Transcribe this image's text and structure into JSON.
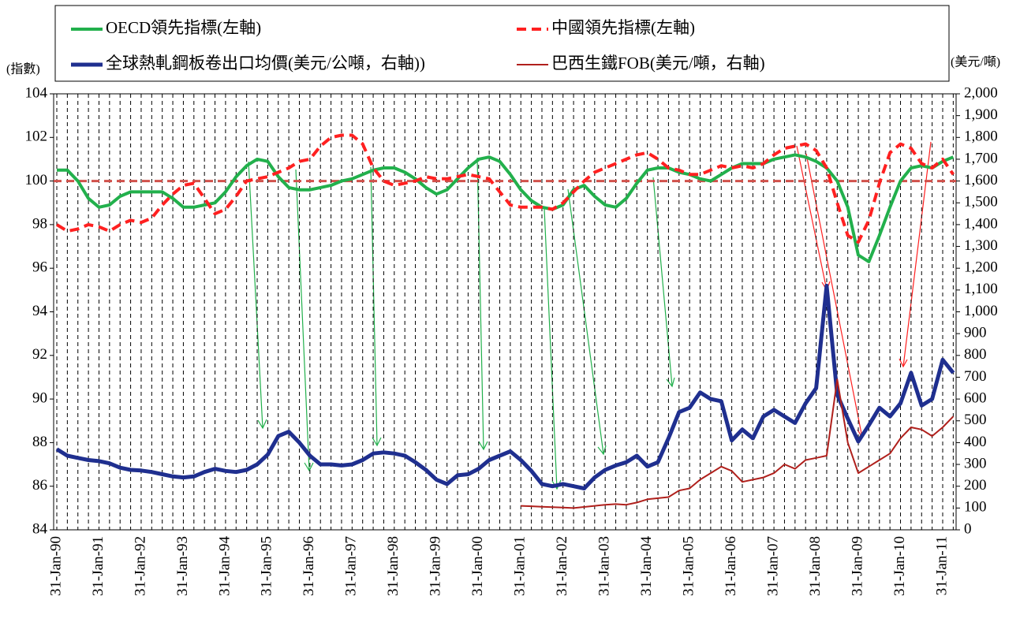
{
  "chart_data": {
    "type": "line",
    "yaxis_label": "(指數)",
    "y2axis_label": "(美元/噸)",
    "legend": "top",
    "grid": true,
    "hline": 100,
    "hline_color": "#d0504a",
    "categories": [
      "31-Jan-90",
      null,
      null,
      null,
      "31-Jan-91",
      null,
      null,
      null,
      "31-Jan-92",
      null,
      null,
      null,
      "31-Jan-93",
      null,
      null,
      null,
      "31-Jan-94",
      null,
      null,
      null,
      "31-Jan-95",
      null,
      null,
      null,
      "31-Jan-96",
      null,
      null,
      null,
      "31-Jan-97",
      null,
      null,
      null,
      "31-Jan-98",
      null,
      null,
      null,
      "31-Jan-99",
      null,
      null,
      null,
      "31-Jan-00",
      null,
      null,
      null,
      "31-Jan-01",
      null,
      null,
      null,
      "31-Jan-02",
      null,
      null,
      null,
      "31-Jan-03",
      null,
      null,
      null,
      "31-Jan-04",
      null,
      null,
      null,
      "31-Jan-05",
      null,
      null,
      null,
      "31-Jan-06",
      null,
      null,
      null,
      "31-Jan-07",
      null,
      null,
      null,
      "31-Jan-08",
      null,
      null,
      null,
      "31-Jan-09",
      null,
      null,
      null,
      "31-Jan-10",
      null,
      null,
      null,
      "31-Jan-11",
      null
    ],
    "ylim": [
      84,
      104
    ],
    "yticks": [
      84,
      86,
      88,
      90,
      92,
      94,
      96,
      98,
      100,
      102,
      104
    ],
    "y2lim": [
      0,
      2000
    ],
    "y2ticks": [
      0,
      100,
      200,
      300,
      400,
      500,
      600,
      700,
      800,
      900,
      {
        "value": 1000,
        "label": "1,000"
      },
      {
        "value": 1100,
        "label": "1,100"
      },
      {
        "value": 1200,
        "label": "1,200"
      },
      {
        "value": 1300,
        "label": "1,300"
      },
      {
        "value": 1400,
        "label": "1,400"
      },
      {
        "value": 1500,
        "label": "1,500"
      },
      {
        "value": 1600,
        "label": "1,600"
      },
      {
        "value": 1700,
        "label": "1,700"
      },
      {
        "value": 1800,
        "label": "1,800"
      },
      {
        "value": 1900,
        "label": "1,900"
      },
      {
        "value": 2000,
        "label": "2,000"
      }
    ],
    "series": [
      {
        "name": "OECD領先指標(左軸)",
        "color": "#22b04c",
        "width": 4,
        "dash": false,
        "values": [
          100.5,
          100.5,
          100.0,
          99.2,
          98.8,
          98.9,
          99.3,
          99.5,
          99.5,
          99.5,
          99.5,
          99.2,
          98.8,
          98.8,
          98.9,
          99.0,
          99.5,
          100.2,
          100.7,
          101.0,
          100.9,
          100.2,
          99.7,
          99.6,
          99.6,
          99.7,
          99.8,
          100.0,
          100.1,
          100.3,
          100.5,
          100.6,
          100.6,
          100.4,
          100.1,
          99.7,
          99.4,
          99.6,
          100.1,
          100.6,
          101.0,
          101.1,
          100.9,
          100.3,
          99.6,
          99.1,
          98.8,
          98.7,
          98.9,
          99.6,
          99.8,
          99.3,
          98.9,
          98.8,
          99.2,
          99.9,
          100.5,
          100.6,
          100.6,
          100.4,
          100.3,
          100.1,
          100.0,
          100.3,
          100.6,
          100.8,
          100.8,
          100.8,
          101.0,
          101.1,
          101.2,
          101.1,
          100.9,
          100.6,
          100.0,
          98.8,
          96.6,
          96.3,
          97.5,
          98.8,
          100.0,
          100.6,
          100.7,
          100.6,
          100.9,
          101.1
        ]
      },
      {
        "name": "中國領先指標(左軸)",
        "color": "#ff2020",
        "width": 4,
        "dash": true,
        "values": [
          98.0,
          97.7,
          97.8,
          98.0,
          97.9,
          97.7,
          98.0,
          98.2,
          98.1,
          98.3,
          98.9,
          99.4,
          99.8,
          99.9,
          99.2,
          98.5,
          98.7,
          99.3,
          100.0,
          100.1,
          100.2,
          100.4,
          100.6,
          100.9,
          101.0,
          101.6,
          102.0,
          102.1,
          102.1,
          101.7,
          100.6,
          100.0,
          99.8,
          99.9,
          100.0,
          100.2,
          100.1,
          100.1,
          100.2,
          100.3,
          100.2,
          100.1,
          99.5,
          98.9,
          98.8,
          98.8,
          98.8,
          98.7,
          99.0,
          99.5,
          100.0,
          100.4,
          100.6,
          100.8,
          101.0,
          101.2,
          101.3,
          101.0,
          100.6,
          100.5,
          100.3,
          100.3,
          100.5,
          100.7,
          100.6,
          100.7,
          100.6,
          100.8,
          101.2,
          101.5,
          101.6,
          101.7,
          101.4,
          100.6,
          99.0,
          97.5,
          97.2,
          98.2,
          99.9,
          101.3,
          101.7,
          101.5,
          100.8,
          100.6,
          101.0,
          100.3
        ]
      },
      {
        "name": "全球熱軋鋼板卷出口均價(美元/公噸，右軸))",
        "color": "#1f2f8f",
        "width": 5,
        "dash": false,
        "axis": "y2",
        "values": [
          370,
          340,
          330,
          320,
          315,
          305,
          285,
          275,
          272,
          265,
          255,
          245,
          240,
          245,
          265,
          280,
          270,
          265,
          275,
          300,
          345,
          430,
          450,
          400,
          340,
          300,
          300,
          295,
          300,
          320,
          350,
          355,
          350,
          340,
          310,
          275,
          230,
          210,
          250,
          255,
          280,
          320,
          340,
          360,
          320,
          270,
          210,
          200,
          210,
          200,
          190,
          240,
          275,
          295,
          310,
          340,
          290,
          310,
          420,
          540,
          560,
          630,
          600,
          590,
          410,
          460,
          420,
          520,
          550,
          520,
          490,
          580,
          650,
          1120,
          620,
          510,
          405,
          480,
          560,
          520,
          580,
          720,
          570,
          600,
          780,
          720
        ]
      },
      {
        "name": "巴西生鐵FOB(美元/噸，右軸)",
        "color": "#b0201c",
        "width": 2,
        "dash": false,
        "axis": "y2",
        "values": [
          null,
          null,
          null,
          null,
          null,
          null,
          null,
          null,
          null,
          null,
          null,
          null,
          null,
          null,
          null,
          null,
          null,
          null,
          null,
          null,
          null,
          null,
          null,
          null,
          null,
          null,
          null,
          null,
          null,
          null,
          null,
          null,
          null,
          null,
          null,
          null,
          null,
          null,
          null,
          null,
          null,
          null,
          null,
          null,
          110,
          108,
          106,
          104,
          102,
          100,
          105,
          110,
          115,
          118,
          115,
          125,
          140,
          145,
          150,
          180,
          190,
          230,
          260,
          290,
          270,
          220,
          230,
          240,
          260,
          300,
          280,
          320,
          330,
          340,
          690,
          400,
          260,
          290,
          320,
          350,
          420,
          470,
          460,
          430,
          470,
          520
        ]
      }
    ]
  }
}
